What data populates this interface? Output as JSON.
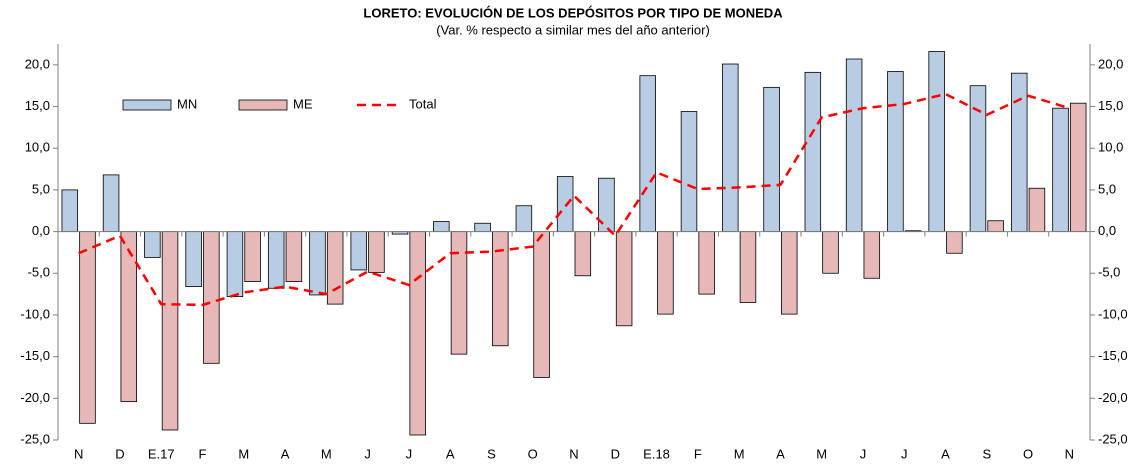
{
  "chart_data": {
    "type": "bar",
    "title": "LORETO: EVOLUCIÓN DE LOS DEPÓSITOS POR TIPO DE MONEDA",
    "subtitle": "(Var. % respecto a similar mes del año anterior)",
    "categories": [
      "N",
      "D",
      "E.17",
      "F",
      "M",
      "A",
      "M",
      "J",
      "J",
      "A",
      "S",
      "O",
      "N",
      "D",
      "E.18",
      "F",
      "M",
      "A",
      "M",
      "J",
      "J",
      "A",
      "S",
      "O",
      "N"
    ],
    "series": [
      {
        "name": "MN",
        "type": "bar",
        "color": "#b8cce4",
        "values": [
          5.0,
          6.8,
          -3.1,
          -6.6,
          -7.8,
          -6.8,
          -7.6,
          -4.6,
          -0.3,
          1.2,
          1.0,
          3.1,
          6.6,
          6.4,
          18.7,
          14.4,
          20.1,
          17.3,
          19.1,
          20.7,
          19.2,
          21.6,
          17.5,
          19.0,
          14.8
        ]
      },
      {
        "name": "ME",
        "type": "bar",
        "color": "#e6b9b8",
        "values": [
          -23.0,
          -20.4,
          -23.8,
          -15.8,
          -6.0,
          -6.0,
          -8.7,
          -4.9,
          -24.4,
          -14.7,
          -13.7,
          -17.5,
          -5.3,
          -11.3,
          -9.9,
          -7.5,
          -8.5,
          -9.9,
          -5.0,
          -5.6,
          0.1,
          -2.6,
          1.3,
          5.2,
          15.4
        ]
      },
      {
        "name": "Total",
        "type": "line",
        "color": "#ff0000",
        "values": [
          -2.6,
          -0.5,
          -8.7,
          -8.8,
          -7.3,
          -6.6,
          -7.5,
          -4.8,
          -6.4,
          -2.6,
          -2.4,
          -1.8,
          4.3,
          -0.5,
          7.1,
          5.1,
          5.3,
          5.6,
          13.7,
          14.8,
          15.3,
          16.5,
          14.0,
          16.3,
          14.8
        ]
      }
    ],
    "ylim": [
      -25,
      22.5
    ],
    "yticks": [
      {
        "value": -25,
        "label": "-25,0"
      },
      {
        "value": -20,
        "label": "-20,0"
      },
      {
        "value": -15,
        "label": "-15,0"
      },
      {
        "value": -10,
        "label": "-10,0"
      },
      {
        "value": -5,
        "label": "-5,0"
      },
      {
        "value": 0,
        "label": "0,0"
      },
      {
        "value": 5,
        "label": "5,0"
      },
      {
        "value": 10,
        "label": "10,0"
      },
      {
        "value": 15,
        "label": "15,0"
      },
      {
        "value": 20,
        "label": "20,0"
      }
    ],
    "grid": false
  }
}
